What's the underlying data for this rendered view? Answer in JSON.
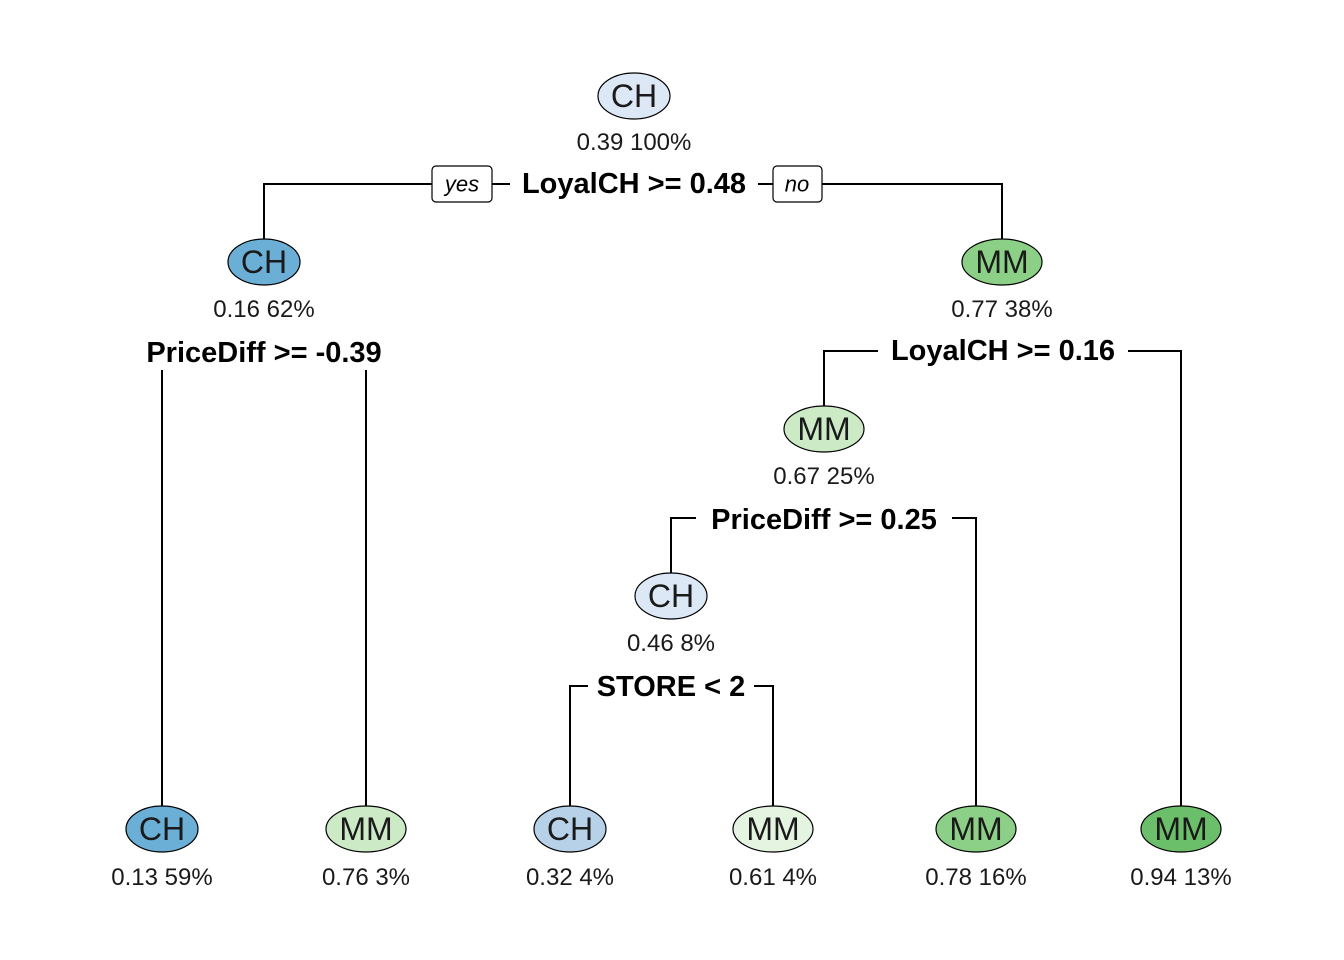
{
  "colors": {
    "ch_strong": "#6BAED6",
    "ch_mid": "#B7D1E8",
    "ch_light": "#DCE8F5",
    "mm_light": "#E5F4E0",
    "mm_pale": "#CBEAC5",
    "mm_mid": "#8CCF86",
    "mm_strong": "#6CBF6A"
  },
  "tree": {
    "branch_labels": {
      "yes": "yes",
      "no": "no"
    },
    "nodes": [
      {
        "id": "n1",
        "class": "CH",
        "stats": "0.39  100%",
        "fill": "ch_light"
      },
      {
        "id": "n2",
        "class": "CH",
        "stats": "0.16  62%",
        "fill": "ch_strong"
      },
      {
        "id": "n3",
        "class": "MM",
        "stats": "0.77  38%",
        "fill": "mm_mid"
      },
      {
        "id": "n6",
        "class": "MM",
        "stats": "0.67  25%",
        "fill": "mm_pale"
      },
      {
        "id": "n12",
        "class": "CH",
        "stats": "0.46  8%",
        "fill": "ch_light"
      },
      {
        "id": "n4",
        "class": "CH",
        "stats": "0.13  59%",
        "fill": "ch_strong"
      },
      {
        "id": "n5",
        "class": "MM",
        "stats": "0.76  3%",
        "fill": "mm_pale"
      },
      {
        "id": "n24",
        "class": "CH",
        "stats": "0.32  4%",
        "fill": "ch_mid"
      },
      {
        "id": "n25",
        "class": "MM",
        "stats": "0.61  4%",
        "fill": "mm_light"
      },
      {
        "id": "n13",
        "class": "MM",
        "stats": "0.78  16%",
        "fill": "mm_mid"
      },
      {
        "id": "n7",
        "class": "MM",
        "stats": "0.94  13%",
        "fill": "mm_strong"
      }
    ],
    "splits": [
      {
        "id": "s1",
        "label": "LoyalCH >= 0.48"
      },
      {
        "id": "s2",
        "label": "PriceDiff >= -0.39"
      },
      {
        "id": "s3",
        "label": "LoyalCH >= 0.16"
      },
      {
        "id": "s6",
        "label": "PriceDiff >= 0.25"
      },
      {
        "id": "s12",
        "label": "STORE < 2"
      }
    ]
  }
}
